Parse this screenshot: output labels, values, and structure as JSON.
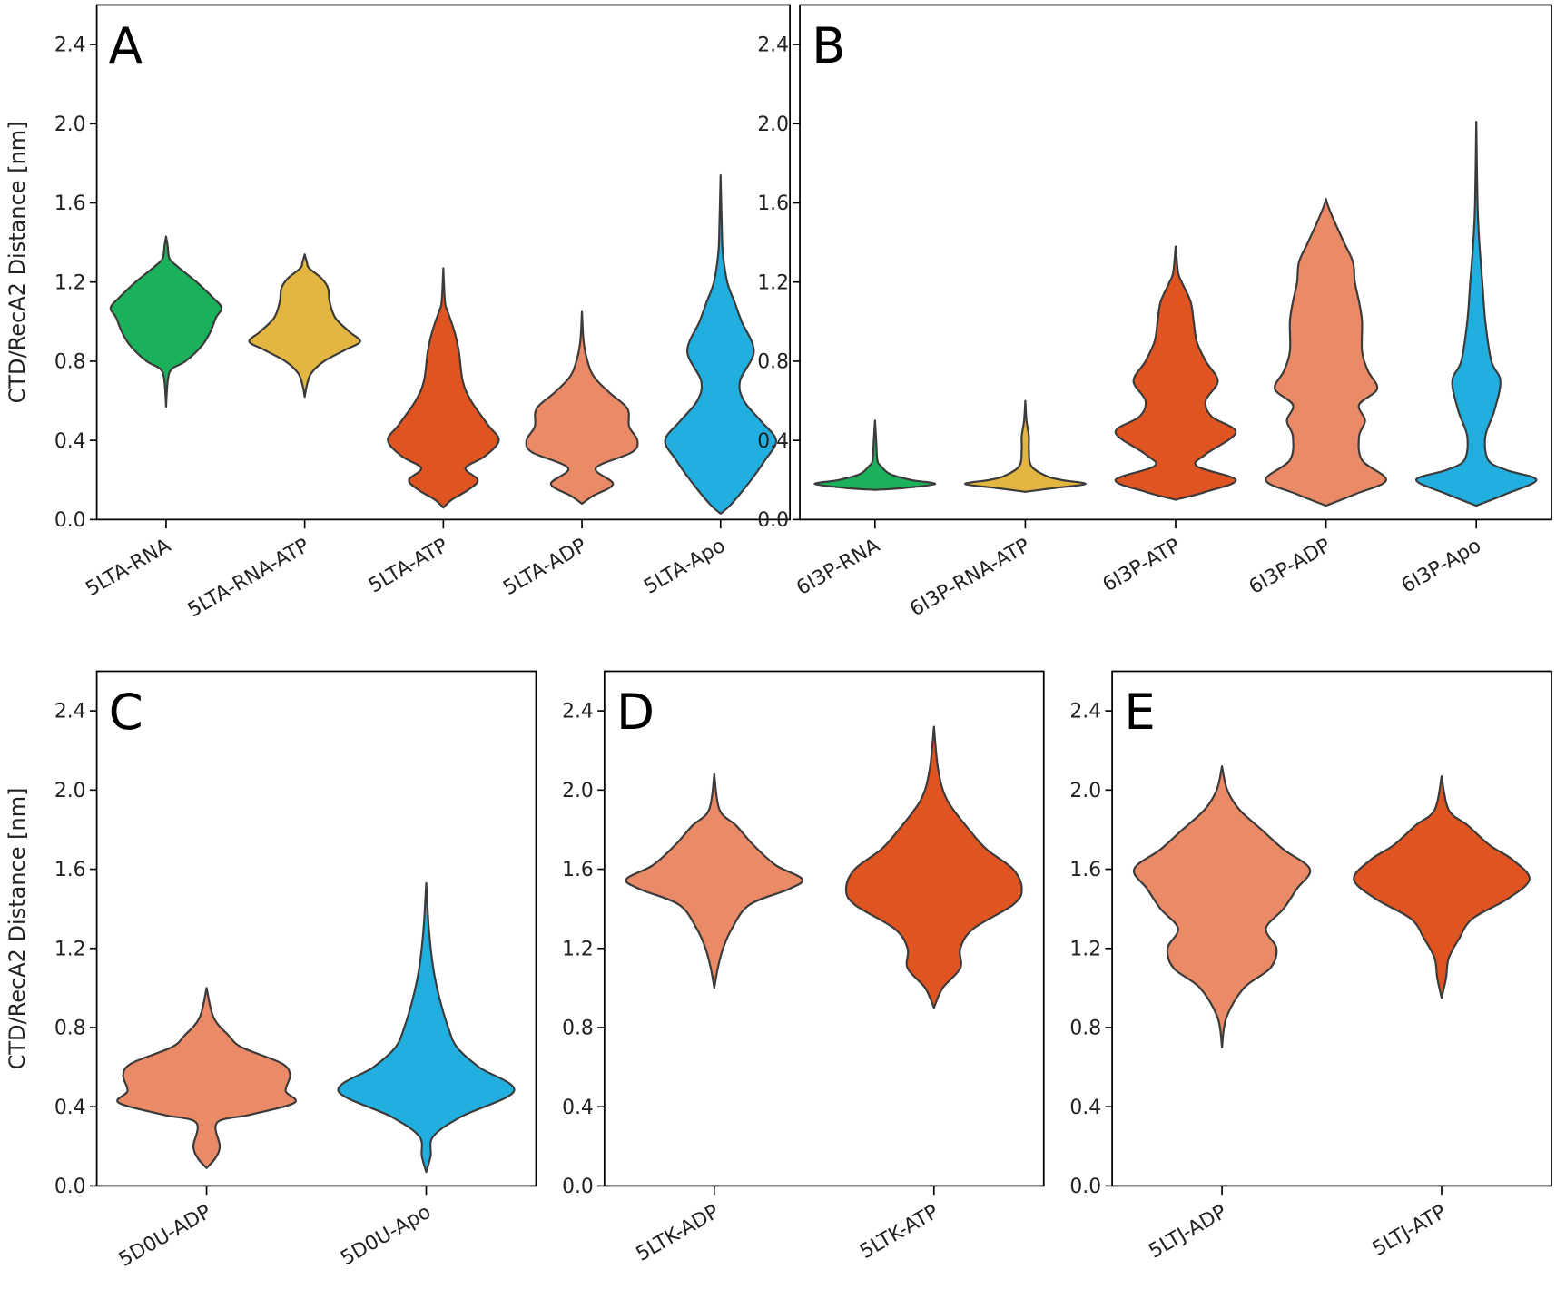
{
  "chart_data": [
    {
      "panel": "A",
      "type": "violin",
      "ylabel": "CTD/RecA2 Distance [nm]",
      "ylim": [
        0,
        2.6
      ],
      "yticks": [
        "0.0",
        "0.4",
        "0.8",
        "1.2",
        "1.6",
        "2.0",
        "2.4"
      ],
      "categories": [
        "5LTA-RNA",
        "5LTA-RNA-ATP",
        "5LTA-ATP",
        "5LTA-ADP",
        "5LTA-Apo"
      ],
      "colors": [
        "#1bb05a",
        "#e3b541",
        "#e05421",
        "#eb8a66",
        "#21afe0"
      ],
      "density_profiles": [
        [
          [
            0.57,
            0
          ],
          [
            0.7,
            0.03
          ],
          [
            0.76,
            0.1
          ],
          [
            0.8,
            0.35
          ],
          [
            0.88,
            0.65
          ],
          [
            0.95,
            0.8
          ],
          [
            1.02,
            0.9
          ],
          [
            1.07,
            1.0
          ],
          [
            1.12,
            0.85
          ],
          [
            1.2,
            0.55
          ],
          [
            1.28,
            0.2
          ],
          [
            1.32,
            0.06
          ],
          [
            1.38,
            0.03
          ],
          [
            1.43,
            0
          ]
        ],
        [
          [
            0.62,
            0
          ],
          [
            0.68,
            0.04
          ],
          [
            0.74,
            0.12
          ],
          [
            0.8,
            0.35
          ],
          [
            0.86,
            0.75
          ],
          [
            0.9,
            1.0
          ],
          [
            0.95,
            0.8
          ],
          [
            1.02,
            0.55
          ],
          [
            1.1,
            0.45
          ],
          [
            1.17,
            0.42
          ],
          [
            1.22,
            0.3
          ],
          [
            1.27,
            0.08
          ],
          [
            1.3,
            0.04
          ],
          [
            1.34,
            0
          ]
        ],
        [
          [
            0.06,
            0
          ],
          [
            0.1,
            0.15
          ],
          [
            0.15,
            0.45
          ],
          [
            0.2,
            0.62
          ],
          [
            0.26,
            0.4
          ],
          [
            0.32,
            0.75
          ],
          [
            0.4,
            1.0
          ],
          [
            0.48,
            0.8
          ],
          [
            0.6,
            0.5
          ],
          [
            0.7,
            0.35
          ],
          [
            0.85,
            0.28
          ],
          [
            0.95,
            0.2
          ],
          [
            1.05,
            0.08
          ],
          [
            1.1,
            0.03
          ],
          [
            1.27,
            0
          ]
        ],
        [
          [
            0.08,
            0
          ],
          [
            0.12,
            0.2
          ],
          [
            0.18,
            0.56
          ],
          [
            0.26,
            0.25
          ],
          [
            0.34,
            0.9
          ],
          [
            0.4,
            1.0
          ],
          [
            0.47,
            0.85
          ],
          [
            0.56,
            0.82
          ],
          [
            0.64,
            0.5
          ],
          [
            0.72,
            0.22
          ],
          [
            0.8,
            0.1
          ],
          [
            0.9,
            0.03
          ],
          [
            1.05,
            0
          ]
        ],
        [
          [
            0.03,
            0
          ],
          [
            0.08,
            0.2
          ],
          [
            0.2,
            0.55
          ],
          [
            0.3,
            0.8
          ],
          [
            0.4,
            1.0
          ],
          [
            0.5,
            0.72
          ],
          [
            0.6,
            0.42
          ],
          [
            0.7,
            0.35
          ],
          [
            0.85,
            0.6
          ],
          [
            1.0,
            0.38
          ],
          [
            1.1,
            0.25
          ],
          [
            1.2,
            0.12
          ],
          [
            1.35,
            0.04
          ],
          [
            1.5,
            0.02
          ],
          [
            1.74,
            0
          ]
        ]
      ]
    },
    {
      "panel": "B",
      "type": "violin",
      "ylabel": "",
      "ylim": [
        0,
        2.6
      ],
      "yticks": [
        "0.0",
        "0.4",
        "0.8",
        "1.2",
        "1.6",
        "2.0",
        "2.4"
      ],
      "categories": [
        "6I3P-RNA",
        "6I3P-RNA-ATP",
        "6I3P-ATP",
        "6I3P-ADP",
        "6I3P-Apo"
      ],
      "colors": [
        "#1bb05a",
        "#e3b541",
        "#e05421",
        "#eb8a66",
        "#21afe0"
      ],
      "density_profiles": [
        [
          [
            0.15,
            0
          ],
          [
            0.16,
            0.5
          ],
          [
            0.18,
            1.0
          ],
          [
            0.2,
            0.6
          ],
          [
            0.23,
            0.25
          ],
          [
            0.27,
            0.1
          ],
          [
            0.3,
            0.04
          ],
          [
            0.4,
            0.02
          ],
          [
            0.5,
            0
          ]
        ],
        [
          [
            0.14,
            0
          ],
          [
            0.16,
            0.5
          ],
          [
            0.18,
            1.0
          ],
          [
            0.2,
            0.6
          ],
          [
            0.22,
            0.35
          ],
          [
            0.27,
            0.1
          ],
          [
            0.35,
            0.06
          ],
          [
            0.42,
            0.06
          ],
          [
            0.5,
            0.02
          ],
          [
            0.6,
            0
          ]
        ],
        [
          [
            0.1,
            0
          ],
          [
            0.14,
            0.5
          ],
          [
            0.2,
            1.0
          ],
          [
            0.27,
            0.35
          ],
          [
            0.33,
            0.5
          ],
          [
            0.44,
            1.0
          ],
          [
            0.52,
            0.6
          ],
          [
            0.6,
            0.5
          ],
          [
            0.7,
            0.7
          ],
          [
            0.8,
            0.5
          ],
          [
            0.9,
            0.35
          ],
          [
            1.0,
            0.3
          ],
          [
            1.1,
            0.25
          ],
          [
            1.2,
            0.1
          ],
          [
            1.25,
            0.04
          ],
          [
            1.38,
            0
          ]
        ],
        [
          [
            0.07,
            0
          ],
          [
            0.13,
            0.5
          ],
          [
            0.2,
            1.0
          ],
          [
            0.3,
            0.6
          ],
          [
            0.42,
            0.55
          ],
          [
            0.5,
            0.65
          ],
          [
            0.58,
            0.55
          ],
          [
            0.66,
            0.85
          ],
          [
            0.75,
            0.7
          ],
          [
            0.85,
            0.6
          ],
          [
            1.0,
            0.6
          ],
          [
            1.1,
            0.55
          ],
          [
            1.2,
            0.48
          ],
          [
            1.3,
            0.45
          ],
          [
            1.4,
            0.3
          ],
          [
            1.5,
            0.15
          ],
          [
            1.58,
            0.04
          ],
          [
            1.62,
            0
          ]
        ],
        [
          [
            0.07,
            0
          ],
          [
            0.13,
            0.5
          ],
          [
            0.2,
            1.0
          ],
          [
            0.25,
            0.5
          ],
          [
            0.3,
            0.2
          ],
          [
            0.42,
            0.15
          ],
          [
            0.55,
            0.3
          ],
          [
            0.7,
            0.4
          ],
          [
            0.8,
            0.25
          ],
          [
            1.0,
            0.15
          ],
          [
            1.2,
            0.1
          ],
          [
            1.4,
            0.05
          ],
          [
            1.6,
            0.02
          ],
          [
            2.01,
            0
          ]
        ]
      ]
    },
    {
      "panel": "C",
      "type": "violin",
      "ylabel": "CTD/RecA2 Distance [nm]",
      "ylim": [
        0,
        2.6
      ],
      "yticks": [
        "0.0",
        "0.4",
        "0.8",
        "1.2",
        "1.6",
        "2.0",
        "2.4"
      ],
      "categories": [
        "5D0U-ADP",
        "5D0U-Apo"
      ],
      "colors": [
        "#eb8a66",
        "#21afe0"
      ],
      "density_profiles": [
        [
          [
            0.09,
            0
          ],
          [
            0.14,
            0.1
          ],
          [
            0.2,
            0.15
          ],
          [
            0.32,
            0.12
          ],
          [
            0.36,
            0.5
          ],
          [
            0.42,
            1.0
          ],
          [
            0.48,
            0.9
          ],
          [
            0.56,
            0.95
          ],
          [
            0.62,
            0.85
          ],
          [
            0.7,
            0.4
          ],
          [
            0.76,
            0.25
          ],
          [
            0.85,
            0.08
          ],
          [
            1.0,
            0
          ]
        ],
        [
          [
            0.07,
            0
          ],
          [
            0.15,
            0.05
          ],
          [
            0.25,
            0.08
          ],
          [
            0.35,
            0.4
          ],
          [
            0.48,
            1.0
          ],
          [
            0.6,
            0.6
          ],
          [
            0.7,
            0.35
          ],
          [
            0.8,
            0.25
          ],
          [
            0.95,
            0.15
          ],
          [
            1.1,
            0.08
          ],
          [
            1.3,
            0.03
          ],
          [
            1.53,
            0
          ]
        ]
      ]
    },
    {
      "panel": "D",
      "type": "violin",
      "ylabel": "",
      "ylim": [
        0,
        2.6
      ],
      "yticks": [
        "0.0",
        "0.4",
        "0.8",
        "1.2",
        "1.6",
        "2.0",
        "2.4"
      ],
      "categories": [
        "5LTK-ADP",
        "5LTK-ATP"
      ],
      "colors": [
        "#eb8a66",
        "#e05421"
      ],
      "density_profiles": [
        [
          [
            1.0,
            0
          ],
          [
            1.1,
            0.04
          ],
          [
            1.2,
            0.1
          ],
          [
            1.3,
            0.2
          ],
          [
            1.42,
            0.4
          ],
          [
            1.5,
            0.85
          ],
          [
            1.55,
            1.0
          ],
          [
            1.62,
            0.7
          ],
          [
            1.72,
            0.45
          ],
          [
            1.82,
            0.25
          ],
          [
            1.9,
            0.06
          ],
          [
            2.08,
            0
          ]
        ],
        [
          [
            0.9,
            0
          ],
          [
            1.0,
            0.1
          ],
          [
            1.1,
            0.3
          ],
          [
            1.2,
            0.3
          ],
          [
            1.3,
            0.45
          ],
          [
            1.42,
            0.9
          ],
          [
            1.5,
            1.0
          ],
          [
            1.6,
            0.9
          ],
          [
            1.7,
            0.6
          ],
          [
            1.8,
            0.4
          ],
          [
            1.95,
            0.15
          ],
          [
            2.1,
            0.05
          ],
          [
            2.32,
            0
          ]
        ]
      ]
    },
    {
      "panel": "E",
      "type": "violin",
      "ylabel": "",
      "ylim": [
        0,
        2.6
      ],
      "yticks": [
        "0.0",
        "0.4",
        "0.8",
        "1.2",
        "1.6",
        "2.0",
        "2.4"
      ],
      "categories": [
        "5LTJ-ADP",
        "5LTJ-ATP"
      ],
      "colors": [
        "#eb8a66",
        "#e05421"
      ],
      "density_profiles": [
        [
          [
            0.7,
            0
          ],
          [
            0.85,
            0.05
          ],
          [
            1.0,
            0.25
          ],
          [
            1.1,
            0.55
          ],
          [
            1.2,
            0.62
          ],
          [
            1.3,
            0.5
          ],
          [
            1.4,
            0.7
          ],
          [
            1.5,
            0.85
          ],
          [
            1.6,
            1.0
          ],
          [
            1.7,
            0.7
          ],
          [
            1.8,
            0.45
          ],
          [
            1.9,
            0.2
          ],
          [
            2.0,
            0.06
          ],
          [
            2.12,
            0
          ]
        ],
        [
          [
            0.95,
            0
          ],
          [
            1.05,
            0.05
          ],
          [
            1.15,
            0.08
          ],
          [
            1.25,
            0.2
          ],
          [
            1.35,
            0.35
          ],
          [
            1.45,
            0.75
          ],
          [
            1.55,
            1.0
          ],
          [
            1.65,
            0.8
          ],
          [
            1.72,
            0.55
          ],
          [
            1.82,
            0.3
          ],
          [
            1.9,
            0.08
          ],
          [
            2.07,
            0
          ]
        ]
      ]
    }
  ]
}
